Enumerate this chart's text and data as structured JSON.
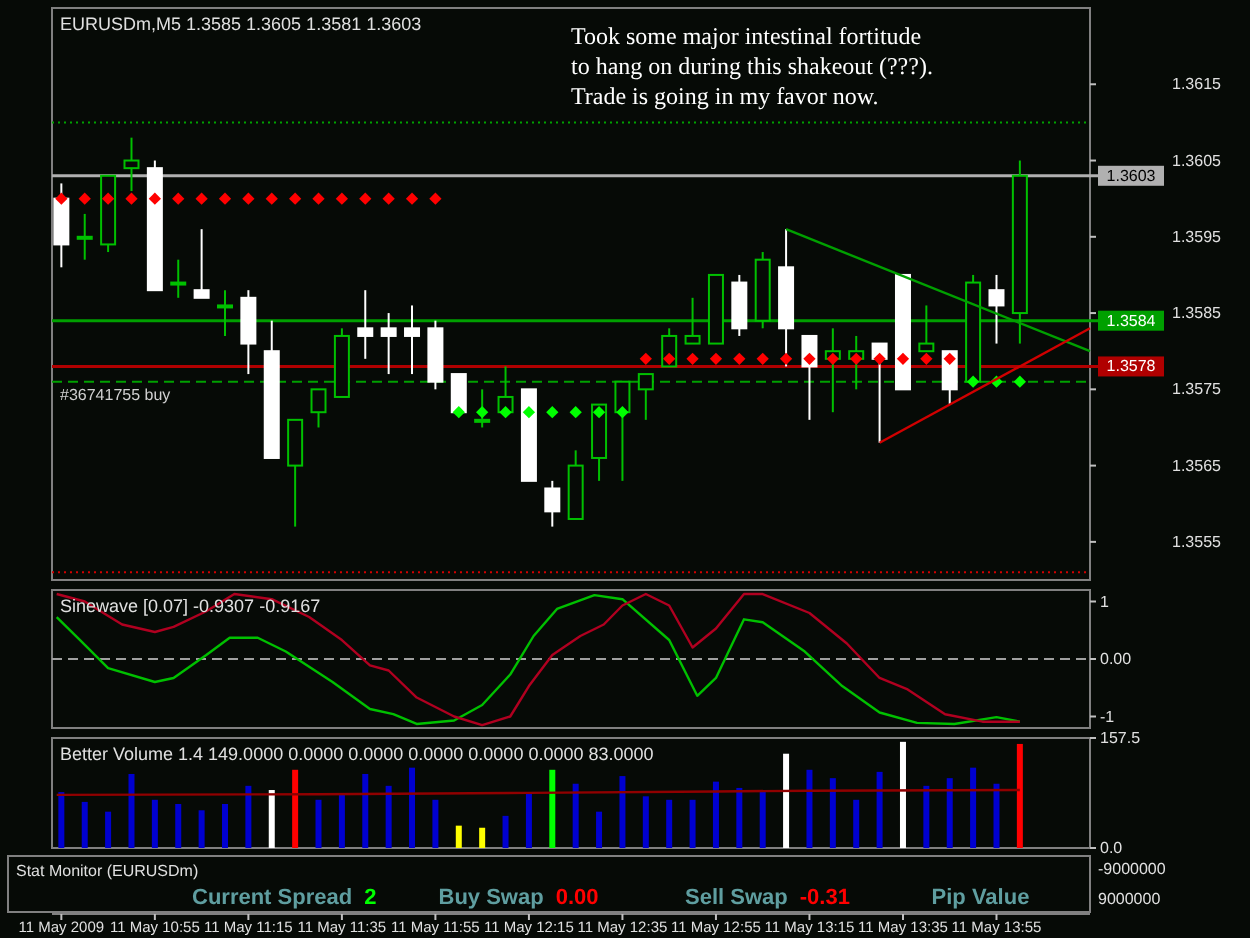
{
  "chart_data": [
    {
      "type": "candlestick",
      "title": "EURUSDm,M5  1.3585 1.3605 1.3581 1.3603",
      "x": [
        "2009-05-11T10:35",
        "2009-05-11T10:40",
        "2009-05-11T10:45",
        "2009-05-11T10:50",
        "2009-05-11T10:55",
        "2009-05-11T11:00",
        "2009-05-11T11:05",
        "2009-05-11T11:10",
        "2009-05-11T11:15",
        "2009-05-11T11:20",
        "2009-05-11T11:25",
        "2009-05-11T11:30",
        "2009-05-11T11:35",
        "2009-05-11T11:40",
        "2009-05-11T11:45",
        "2009-05-11T11:50",
        "2009-05-11T11:55",
        "2009-05-11T12:00",
        "2009-05-11T12:05",
        "2009-05-11T12:10",
        "2009-05-11T12:15",
        "2009-05-11T12:20",
        "2009-05-11T12:25",
        "2009-05-11T12:30",
        "2009-05-11T12:35",
        "2009-05-11T12:40",
        "2009-05-11T12:45",
        "2009-05-11T12:50",
        "2009-05-11T12:55",
        "2009-05-11T13:00",
        "2009-05-11T13:05",
        "2009-05-11T13:10",
        "2009-05-11T13:15",
        "2009-05-11T13:20",
        "2009-05-11T13:25",
        "2009-05-11T13:30",
        "2009-05-11T13:35",
        "2009-05-11T13:40",
        "2009-05-11T13:45",
        "2009-05-11T13:50",
        "2009-05-11T13:55",
        "2009-05-11T14:00"
      ],
      "ohlc": [
        [
          1.36,
          1.3602,
          1.3591,
          1.3594
        ],
        [
          1.3595,
          1.3598,
          1.3592,
          1.3595
        ],
        [
          1.3594,
          1.3603,
          1.3593,
          1.3603
        ],
        [
          1.3604,
          1.3608,
          1.3601,
          1.3605
        ],
        [
          1.3604,
          1.3605,
          1.3588,
          1.3588
        ],
        [
          1.3589,
          1.3592,
          1.3587,
          1.3589
        ],
        [
          1.3588,
          1.3596,
          1.3587,
          1.3587
        ],
        [
          1.3586,
          1.3588,
          1.3582,
          1.3586
        ],
        [
          1.3587,
          1.3588,
          1.3577,
          1.3581
        ],
        [
          1.358,
          1.3584,
          1.3566,
          1.3566
        ],
        [
          1.3565,
          1.3571,
          1.3557,
          1.3571
        ],
        [
          1.3572,
          1.3575,
          1.357,
          1.3575
        ],
        [
          1.3574,
          1.3583,
          1.3574,
          1.3582
        ],
        [
          1.3583,
          1.3588,
          1.3579,
          1.3582
        ],
        [
          1.3583,
          1.3585,
          1.3577,
          1.3582
        ],
        [
          1.3583,
          1.3586,
          1.3577,
          1.3582
        ],
        [
          1.3583,
          1.3584,
          1.3575,
          1.3576
        ],
        [
          1.3577,
          1.3577,
          1.3572,
          1.3572
        ],
        [
          1.3571,
          1.3575,
          1.357,
          1.3571
        ],
        [
          1.3572,
          1.3578,
          1.3572,
          1.3574
        ],
        [
          1.3575,
          1.3575,
          1.3563,
          1.3563
        ],
        [
          1.3562,
          1.3563,
          1.3557,
          1.3559
        ],
        [
          1.3558,
          1.3567,
          1.3558,
          1.3565
        ],
        [
          1.3566,
          1.3573,
          1.3563,
          1.3573
        ],
        [
          1.3572,
          1.3576,
          1.3563,
          1.3576
        ],
        [
          1.3575,
          1.3577,
          1.3571,
          1.3577
        ],
        [
          1.3578,
          1.3583,
          1.3578,
          1.3582
        ],
        [
          1.3581,
          1.3587,
          1.3581,
          1.3582
        ],
        [
          1.3581,
          1.359,
          1.3581,
          1.359
        ],
        [
          1.3589,
          1.359,
          1.3582,
          1.3583
        ],
        [
          1.3584,
          1.3593,
          1.3583,
          1.3592
        ],
        [
          1.3591,
          1.3596,
          1.3578,
          1.3583
        ],
        [
          1.3582,
          1.3582,
          1.3571,
          1.3578
        ],
        [
          1.3579,
          1.3583,
          1.3572,
          1.358
        ],
        [
          1.3579,
          1.3582,
          1.3575,
          1.358
        ],
        [
          1.3581,
          1.3581,
          1.3568,
          1.3579
        ],
        [
          1.359,
          1.359,
          1.3575,
          1.3575
        ],
        [
          1.358,
          1.3586,
          1.358,
          1.3581
        ],
        [
          1.358,
          1.358,
          1.3573,
          1.3575
        ],
        [
          1.3576,
          1.359,
          1.3576,
          1.3589
        ],
        [
          1.3588,
          1.359,
          1.3581,
          1.3586
        ],
        [
          1.3585,
          1.3605,
          1.3581,
          1.3603
        ]
      ],
      "series": [
        {
          "type": "scatter",
          "color": "#ff0000",
          "marker": "diamond",
          "values": [
            1.36,
            1.36,
            1.36,
            1.36,
            1.36,
            1.36,
            1.36,
            1.36,
            1.36,
            1.36,
            1.36,
            1.36,
            1.36,
            1.36,
            1.36,
            1.36,
            1.36,
            null,
            null,
            null,
            null,
            null,
            null,
            null,
            null,
            1.3579,
            1.3579,
            1.3579,
            1.3579,
            1.3579,
            1.3579,
            1.3579,
            1.3579,
            1.3579,
            1.3579,
            1.3579,
            1.3579,
            1.3579,
            1.3579,
            null,
            null,
            null
          ]
        },
        {
          "type": "scatter",
          "color": "#00ff00",
          "marker": "diamond",
          "values": [
            null,
            null,
            null,
            null,
            null,
            null,
            null,
            null,
            null,
            null,
            null,
            null,
            null,
            null,
            null,
            null,
            null,
            1.3572,
            1.3572,
            1.3572,
            1.3572,
            1.3572,
            1.3572,
            1.3572,
            1.3572,
            null,
            null,
            null,
            null,
            null,
            null,
            null,
            null,
            null,
            null,
            null,
            null,
            null,
            null,
            1.3576,
            1.3576,
            1.3576
          ]
        },
        {
          "type": "line",
          "color": "#00a000",
          "x": [
            "2009-05-11T13:10",
            "2009-05-11T14:15"
          ],
          "values": [
            1.3596,
            1.358
          ]
        },
        {
          "type": "line",
          "color": "#d00000",
          "x": [
            "2009-05-11T13:30",
            "2009-05-11T14:15"
          ],
          "values": [
            1.3568,
            1.3583
          ]
        }
      ],
      "xlim": [
        "2009-05-11T10:33",
        "2009-05-11T14:15"
      ],
      "ylim": [
        1.355,
        1.3625
      ],
      "yticks": [
        1.3615,
        1.3605,
        1.3595,
        1.3585,
        1.3575,
        1.3565,
        1.3555
      ],
      "tick_labels": "y",
      "ref_lines": [
        {
          "axis": "y",
          "value": 1.3603,
          "label": "1.3603",
          "color": "#b0b0b0"
        },
        {
          "axis": "y",
          "value": 1.3584,
          "label": "1.3584",
          "color": "#00a000"
        },
        {
          "axis": "y",
          "value": 1.3578,
          "label": "1.3578",
          "color": "#b00000"
        },
        {
          "axis": "y",
          "value": 1.3576,
          "label": "#36741755 buy",
          "color": "#00a000",
          "line_style": "dashed"
        },
        {
          "axis": "y",
          "value": 1.361,
          "label": null,
          "color": "#00a000",
          "line_style": "dotted"
        },
        {
          "axis": "y",
          "value": 1.3551,
          "label": null,
          "color": "#d00000",
          "line_style": "dotted"
        }
      ],
      "annotations": [
        "Took some major intestinal fortitude\nto hang on during this shakeout (???).\nTrade is going in my favor now."
      ]
    },
    {
      "type": "line",
      "title": "Sinewave [0.07] -0.9307 -0.9167",
      "series": [
        {
          "color": "#00c000",
          "x": [
            "2009-05-11T10:34",
            "2009-05-11T10:39",
            "2009-05-11T10:45",
            "2009-05-11T10:55",
            "2009-05-11T10:59",
            "2009-05-11T11:06",
            "2009-05-11T11:11",
            "2009-05-11T11:17",
            "2009-05-11T11:23",
            "2009-05-11T11:33",
            "2009-05-11T11:41",
            "2009-05-11T11:46",
            "2009-05-11T11:51",
            "2009-05-11T11:59",
            "2009-05-11T12:05",
            "2009-05-11T12:11",
            "2009-05-11T12:16",
            "2009-05-11T12:21",
            "2009-05-11T12:29",
            "2009-05-11T12:35",
            "2009-05-11T12:45",
            "2009-05-11T12:51",
            "2009-05-11T12:55",
            "2009-05-11T13:01",
            "2009-05-11T13:05",
            "2009-05-11T13:14",
            "2009-05-11T13:22",
            "2009-05-11T13:30",
            "2009-05-11T13:38",
            "2009-05-11T13:46",
            "2009-05-11T13:55",
            "2009-05-11T14:00"
          ],
          "values": [
            0.73,
            0.33,
            -0.16,
            -0.4,
            -0.33,
            0.07,
            0.37,
            0.37,
            0.13,
            -0.4,
            -0.87,
            -0.96,
            -1.13,
            -1.07,
            -0.8,
            -0.27,
            0.4,
            0.87,
            1.11,
            1.04,
            0.33,
            -0.64,
            -0.33,
            0.69,
            0.64,
            0.13,
            -0.47,
            -0.93,
            -1.11,
            -1.13,
            -1.01,
            -1.09
          ]
        },
        {
          "color": "#b00020",
          "x": [
            "2009-05-11T10:34",
            "2009-05-11T10:40",
            "2009-05-11T10:48",
            "2009-05-11T10:55",
            "2009-05-11T10:59",
            "2009-05-11T11:06",
            "2009-05-11T11:12",
            "2009-05-11T11:20",
            "2009-05-11T11:28",
            "2009-05-11T11:35",
            "2009-05-11T11:41",
            "2009-05-11T11:45",
            "2009-05-11T11:51",
            "2009-05-11T11:59",
            "2009-05-11T12:05",
            "2009-05-11T12:11",
            "2009-05-11T12:15",
            "2009-05-11T12:20",
            "2009-05-11T12:26",
            "2009-05-11T12:31",
            "2009-05-11T12:35",
            "2009-05-11T12:40",
            "2009-05-11T12:45",
            "2009-05-11T12:50",
            "2009-05-11T12:55",
            "2009-05-11T13:01",
            "2009-05-11T13:05",
            "2009-05-11T13:15",
            "2009-05-11T13:23",
            "2009-05-11T13:30",
            "2009-05-11T13:36",
            "2009-05-11T13:44",
            "2009-05-11T13:52",
            "2009-05-11T14:00"
          ],
          "values": [
            1.13,
            1.0,
            0.6,
            0.47,
            0.56,
            0.83,
            1.13,
            1.04,
            0.73,
            0.33,
            -0.11,
            -0.2,
            -0.67,
            -1.0,
            -1.15,
            -1.0,
            -0.47,
            0.07,
            0.4,
            0.6,
            0.93,
            1.13,
            0.93,
            0.2,
            0.53,
            1.13,
            1.13,
            0.8,
            0.27,
            -0.33,
            -0.53,
            -0.96,
            -1.09,
            -1.09
          ]
        }
      ],
      "xlim": [
        "2009-05-11T10:33",
        "2009-05-11T14:15"
      ],
      "ylim": [
        -1.2,
        1.2
      ],
      "yticks": [
        1,
        {
          "value": 0,
          "label": "0.00"
        },
        -1
      ],
      "tick_labels": "y",
      "ref_lines": [
        {
          "axis": "y",
          "value": 0,
          "label": null,
          "color": "#a0a0a0",
          "line_style": "dashed"
        }
      ]
    },
    {
      "type": "bar",
      "title": "Better Volume 1.4 149.0000 0.0000 0.0000 0.0000 0.0000 0.0000 83.0000",
      "x": [
        "2009-05-11T10:35",
        "2009-05-11T10:40",
        "2009-05-11T10:45",
        "2009-05-11T10:50",
        "2009-05-11T10:55",
        "2009-05-11T11:00",
        "2009-05-11T11:05",
        "2009-05-11T11:10",
        "2009-05-11T11:15",
        "2009-05-11T11:20",
        "2009-05-11T11:25",
        "2009-05-11T11:30",
        "2009-05-11T11:35",
        "2009-05-11T11:40",
        "2009-05-11T11:45",
        "2009-05-11T11:50",
        "2009-05-11T11:55",
        "2009-05-11T12:00",
        "2009-05-11T12:05",
        "2009-05-11T12:10",
        "2009-05-11T12:15",
        "2009-05-11T12:20",
        "2009-05-11T12:25",
        "2009-05-11T12:30",
        "2009-05-11T12:35",
        "2009-05-11T12:40",
        "2009-05-11T12:45",
        "2009-05-11T12:50",
        "2009-05-11T12:55",
        "2009-05-11T13:00",
        "2009-05-11T13:05",
        "2009-05-11T13:10",
        "2009-05-11T13:15",
        "2009-05-11T13:20",
        "2009-05-11T13:25",
        "2009-05-11T13:30",
        "2009-05-11T13:35",
        "2009-05-11T13:40",
        "2009-05-11T13:45",
        "2009-05-11T13:50",
        "2009-05-11T13:55",
        "2009-05-11T14:00"
      ],
      "series": [
        {
          "type": "bar",
          "values": [
            80,
            66,
            52,
            106,
            69,
            63,
            54,
            63,
            89,
            83,
            112,
            69,
            77,
            106,
            89,
            115,
            69,
            32,
            29,
            46,
            80,
            112,
            92,
            52,
            103,
            74,
            69,
            69,
            95,
            86,
            83,
            135,
            112,
            100,
            69,
            109,
            152,
            89,
            100,
            115,
            92,
            149
          ],
          "colors": [
            "#0000d0",
            "#0000d0",
            "#0000d0",
            "#0000d0",
            "#0000d0",
            "#0000d0",
            "#0000d0",
            "#0000d0",
            "#0000d0",
            "#ffffff",
            "#ff0000",
            "#0000d0",
            "#0000d0",
            "#0000d0",
            "#0000d0",
            "#0000d0",
            "#0000d0",
            "#ffff00",
            "#ffff00",
            "#0000d0",
            "#0000d0",
            "#00ff00",
            "#0000d0",
            "#0000d0",
            "#0000d0",
            "#0000d0",
            "#0000d0",
            "#0000d0",
            "#0000d0",
            "#0000d0",
            "#0000d0",
            "#ffffff",
            "#0000d0",
            "#0000d0",
            "#0000d0",
            "#0000d0",
            "#ffffff",
            "#0000d0",
            "#0000d0",
            "#0000d0",
            "#0000d0",
            "#ff0000"
          ]
        },
        {
          "type": "line",
          "color": "#900000",
          "x": [
            "2009-05-11T10:34",
            "2009-05-11T11:30",
            "2009-05-11T12:15",
            "2009-05-11T12:55",
            "2009-05-11T13:15",
            "2009-05-11T14:00"
          ],
          "values": [
            76,
            77,
            79,
            81,
            82,
            83
          ]
        }
      ],
      "xlim": [
        "2009-05-11T10:33",
        "2009-05-11T14:15"
      ],
      "ylim": [
        0,
        157.5
      ],
      "yticks": [
        157.5,
        {
          "value": 0,
          "label": "0.0"
        }
      ],
      "xticks": [
        {
          "value": "2009-05-11T10:35",
          "label": "11 May 2009"
        },
        {
          "value": "2009-05-11T10:55",
          "label": "11 May 10:55"
        },
        {
          "value": "2009-05-11T11:15",
          "label": "11 May 11:15"
        },
        {
          "value": "2009-05-11T11:35",
          "label": "11 May 11:35"
        },
        {
          "value": "2009-05-11T11:55",
          "label": "11 May 11:55"
        },
        {
          "value": "2009-05-11T12:15",
          "label": "11 May 12:15"
        },
        {
          "value": "2009-05-11T12:35",
          "label": "11 May 12:35"
        },
        {
          "value": "2009-05-11T12:55",
          "label": "11 May 12:55"
        },
        {
          "value": "2009-05-11T13:15",
          "label": "11 May 13:15"
        },
        {
          "value": "2009-05-11T13:35",
          "label": "11 May 13:35"
        },
        {
          "value": "2009-05-11T13:55",
          "label": "11 May 13:55"
        }
      ]
    },
    {
      "type": "other",
      "title": "Stat Monitor (EURUSDm)",
      "categories": [
        "Current Spread",
        "Buy Swap",
        "Sell Swap",
        "Pip Value"
      ],
      "value_labels": [
        "2",
        "0.00",
        "-0.31",
        null
      ],
      "colors": [
        "#00ff00",
        "#ff0000",
        "#ff0000",
        null
      ],
      "annotations": [
        "-9000000",
        "9000000"
      ]
    }
  ]
}
